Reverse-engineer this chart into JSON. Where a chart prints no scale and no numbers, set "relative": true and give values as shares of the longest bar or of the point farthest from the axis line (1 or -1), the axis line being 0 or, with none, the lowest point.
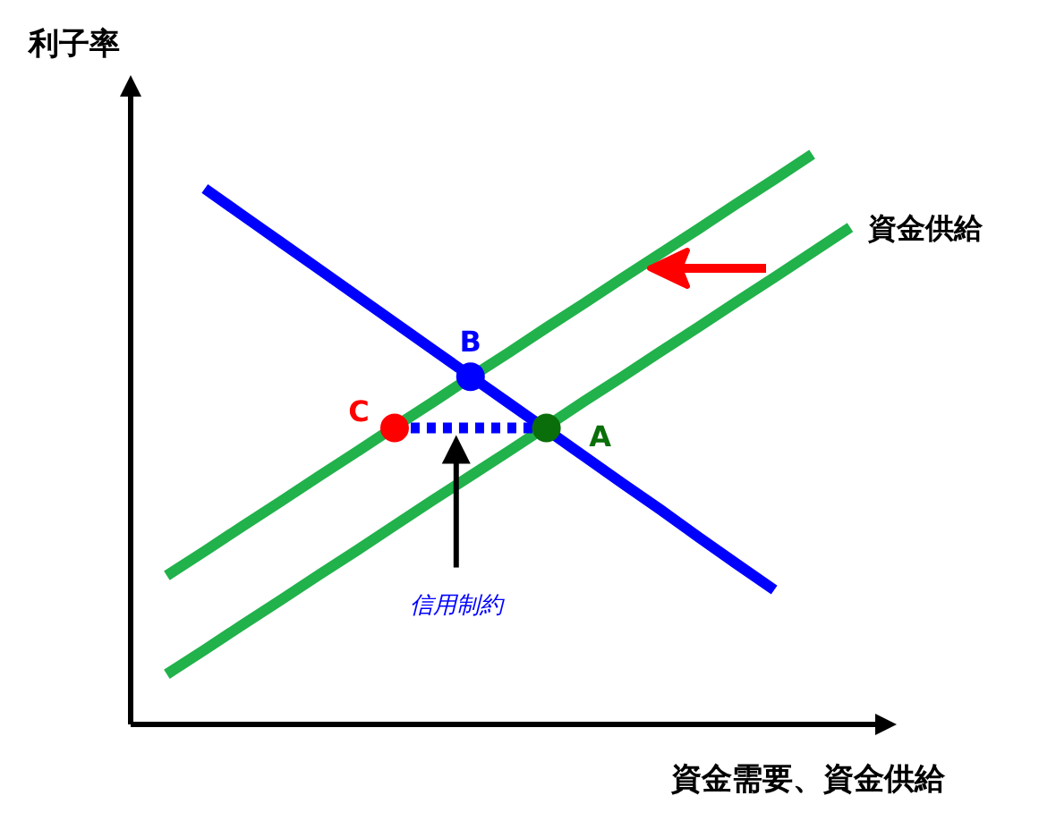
{
  "chart_data": {
    "type": "line",
    "relative": true,
    "xlabel": "資金需要、資金供給",
    "ylabel": "利子率",
    "tick_labels": false,
    "categories": [
      null,
      null,
      null,
      null,
      null,
      null,
      null,
      null,
      null,
      null,
      null,
      null,
      null,
      null,
      null,
      null,
      null,
      null,
      null
    ],
    "series": [
      {
        "color": "#21b24b",
        "values": [
          0.261,
          0.304,
          0.348,
          0.391,
          0.435,
          0.478,
          0.522,
          0.565,
          0.609,
          0.652,
          0.696,
          0.739,
          0.783,
          0.826,
          0.869,
          0.913,
          0.956,
          1,
          null
        ],
        "line_style": "solid",
        "marker": "none"
      },
      {
        "name": "資金供給",
        "color": "#21b24b",
        "values": [
          0.088,
          0.131,
          0.175,
          0.218,
          0.262,
          0.305,
          0.349,
          0.393,
          0.436,
          0.479,
          0.523,
          0.567,
          0.61,
          0.654,
          0.697,
          0.741,
          0.784,
          0.828,
          0.872
        ],
        "line_style": "solid",
        "marker": "none"
      },
      {
        "color": "#0000ff",
        "values": [
          null,
          0.94,
          0.893,
          0.846,
          0.799,
          0.752,
          0.705,
          0.658,
          0.611,
          0.564,
          0.517,
          0.47,
          0.423,
          0.377,
          0.329,
          0.282,
          0.236,
          null,
          null
        ],
        "line_style": "solid",
        "marker": "none"
      },
      {
        "color": "#0000ff",
        "values": [
          null,
          null,
          null,
          null,
          null,
          null,
          0.52,
          0.52,
          0.52,
          0.52,
          0.52,
          null,
          null,
          null,
          null,
          null,
          null,
          null,
          null
        ],
        "line_style": "dotted",
        "marker": "none"
      },
      {
        "name": "B",
        "color": "#0000ff",
        "values": [
          null,
          null,
          null,
          null,
          null,
          null,
          null,
          null,
          0.61,
          null,
          null,
          null,
          null,
          null,
          null,
          null,
          null,
          null,
          null
        ],
        "marker": "circle"
      },
      {
        "name": "C",
        "color": "#ff0000",
        "values": [
          null,
          null,
          null,
          null,
          null,
          null,
          0.52,
          null,
          null,
          null,
          null,
          null,
          null,
          null,
          null,
          null,
          null,
          null,
          null
        ],
        "marker": "circle"
      },
      {
        "name": "A",
        "color": "#0a6e0a",
        "values": [
          null,
          null,
          null,
          null,
          null,
          null,
          null,
          null,
          null,
          null,
          0.52,
          null,
          null,
          null,
          null,
          null,
          null,
          null,
          null
        ],
        "marker": "circle"
      }
    ],
    "annotations": [
      "信用制約"
    ]
  }
}
